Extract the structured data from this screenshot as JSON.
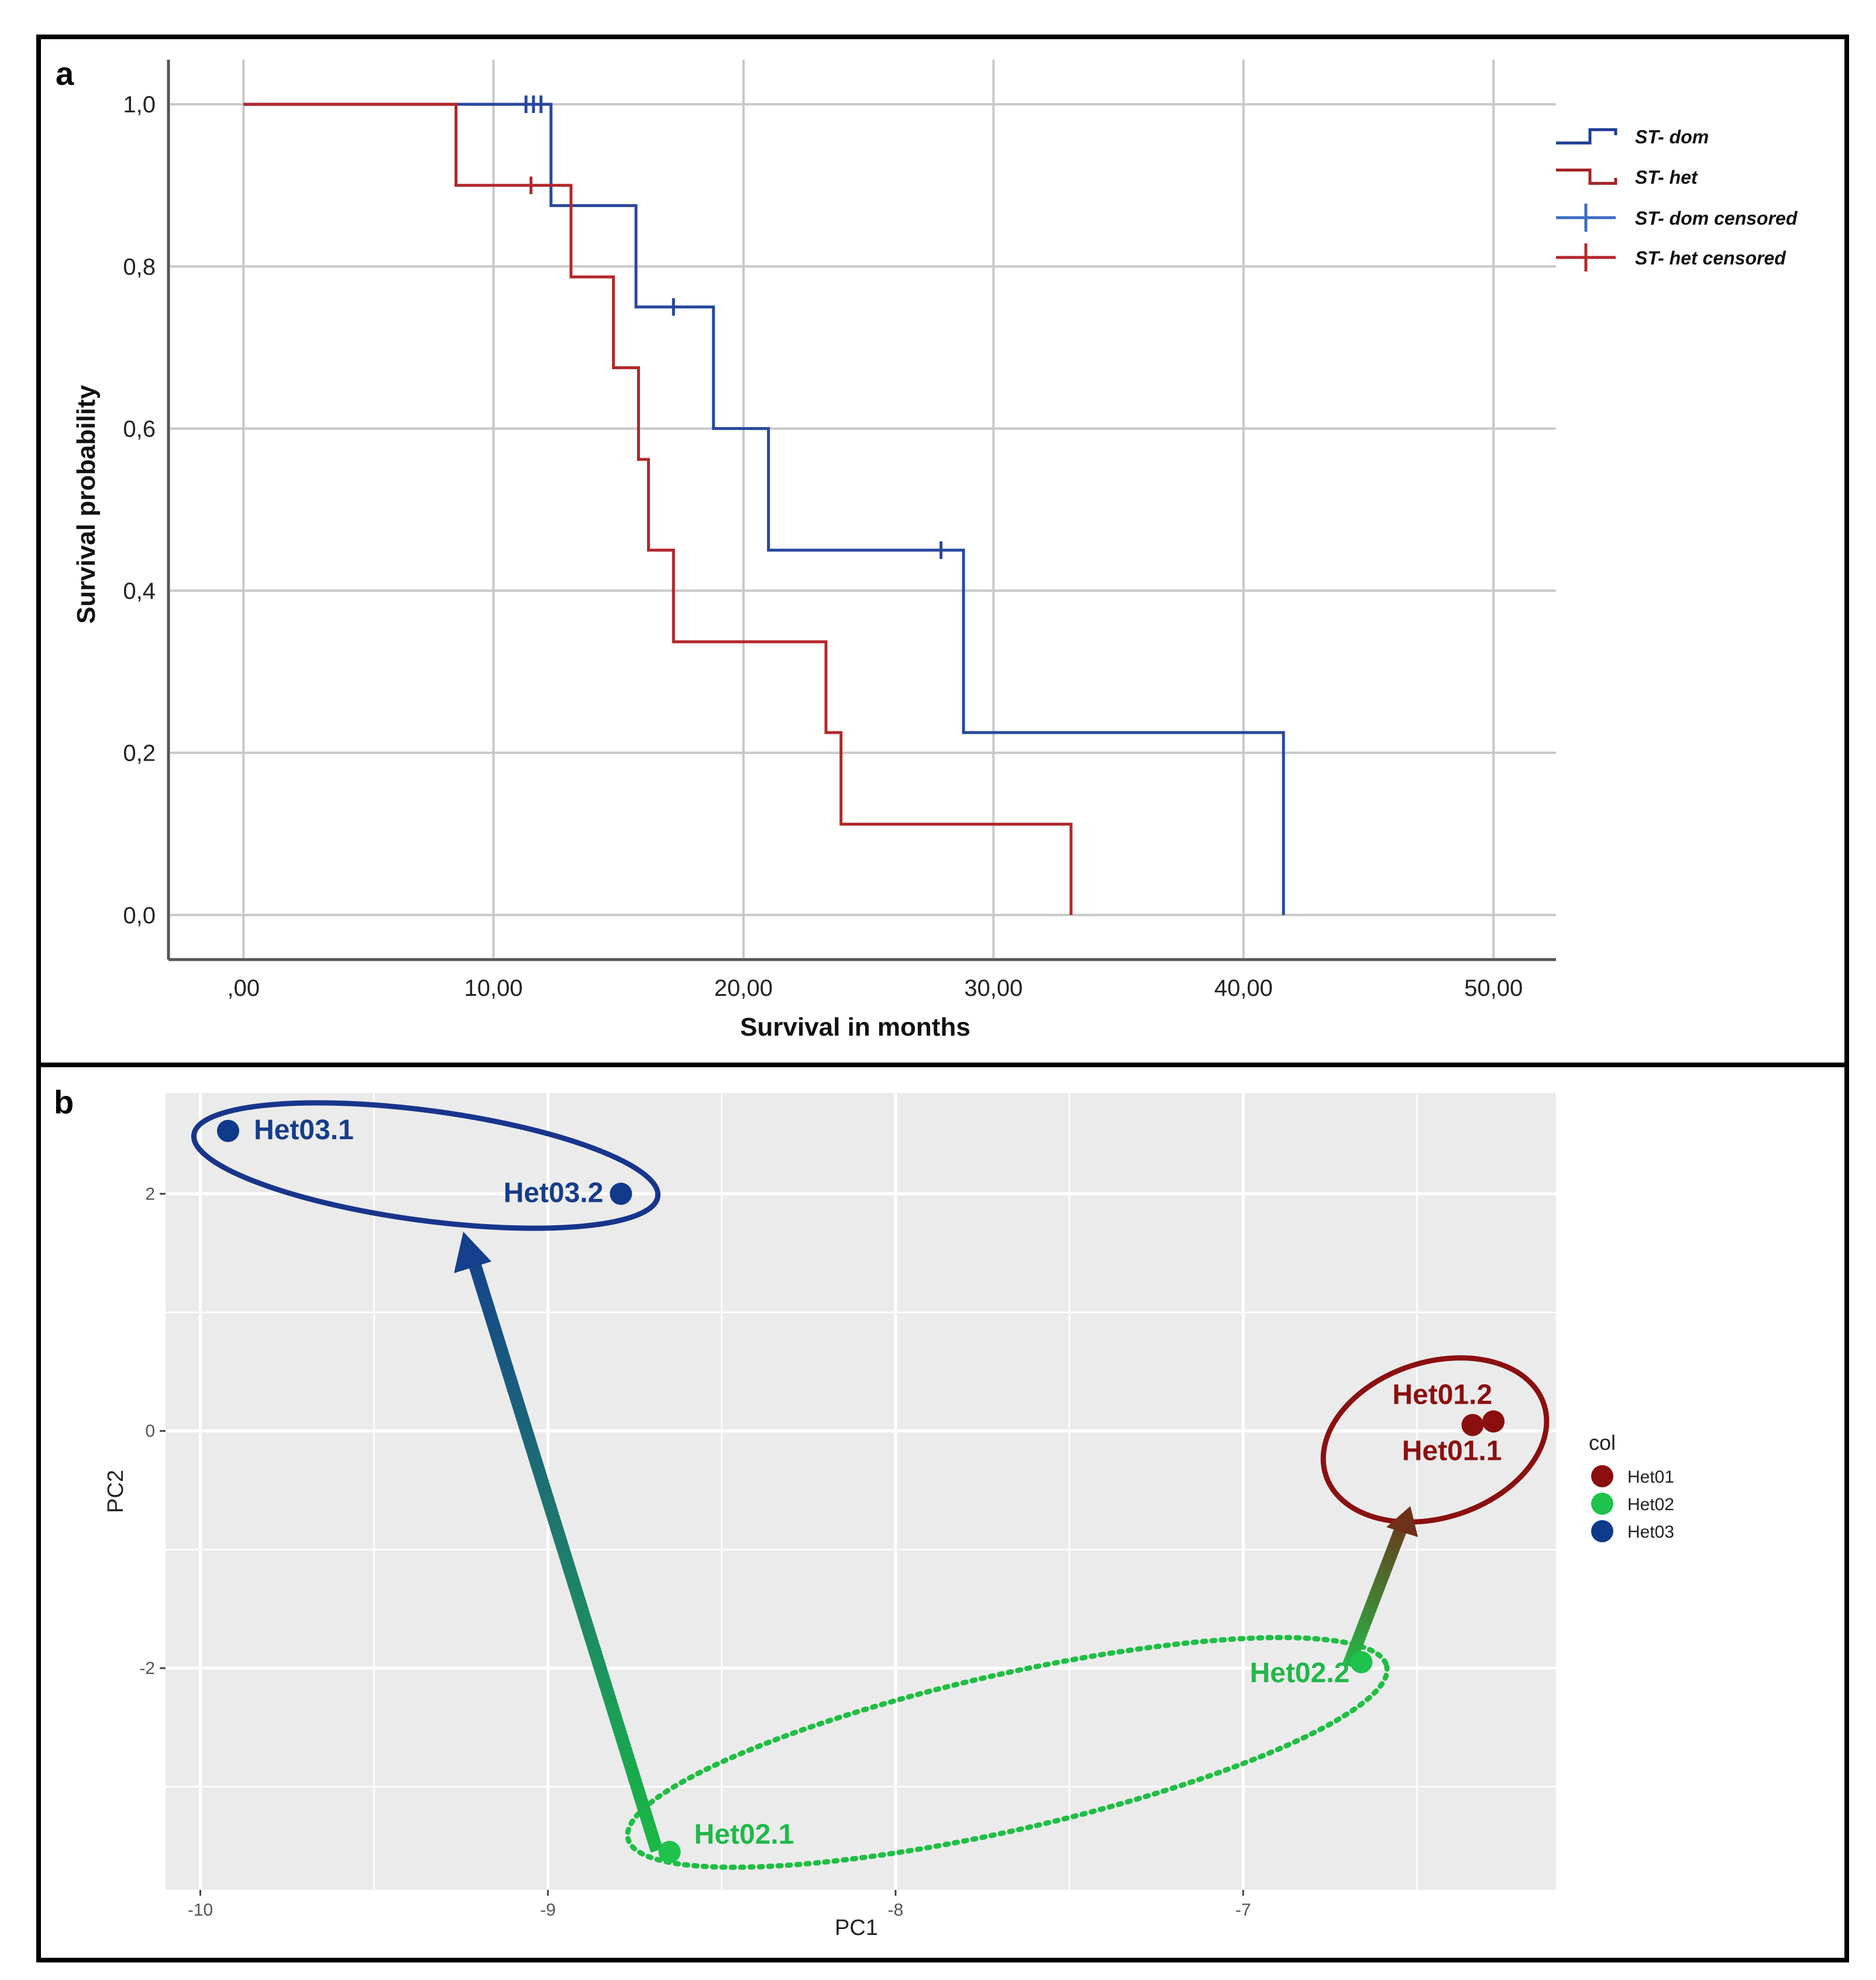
{
  "chart_data": [
    {
      "type": "line",
      "subtype": "kaplan-meier step",
      "panel_label": "a",
      "xlabel": "Survival in months",
      "ylabel": "Survival probability",
      "xlim": [
        -3,
        52.5
      ],
      "ylim": [
        -0.055,
        1.055
      ],
      "x_ticks": [
        0,
        10,
        20,
        30,
        40,
        50
      ],
      "x_tick_labels": [
        ",00",
        "10,00",
        "20,00",
        "30,00",
        "40,00",
        "50,00"
      ],
      "y_ticks": [
        0,
        0.2,
        0.4,
        0.6,
        0.8,
        1.0
      ],
      "y_tick_labels": [
        "0,0",
        "0,2",
        "0,4",
        "0,6",
        "0,8",
        "1,0"
      ],
      "grid": true,
      "legend_position": "top-right",
      "series": [
        {
          "name": "ST- dom",
          "color": "#27489c",
          "points": [
            [
              0,
              1.0
            ],
            [
              12.3,
              1.0
            ],
            [
              12.3,
              0.875
            ],
            [
              15.7,
              0.875
            ],
            [
              15.7,
              0.75
            ],
            [
              18.8,
              0.75
            ],
            [
              18.8,
              0.6
            ],
            [
              21.0,
              0.6
            ],
            [
              21.0,
              0.45
            ],
            [
              28.8,
              0.45
            ],
            [
              28.8,
              0.225
            ],
            [
              41.6,
              0.225
            ],
            [
              41.6,
              0.0
            ]
          ],
          "censored": [
            [
              11.3,
              1.0
            ],
            [
              11.6,
              1.0
            ],
            [
              11.9,
              1.0
            ],
            [
              17.2,
              0.75
            ],
            [
              27.9,
              0.45
            ]
          ]
        },
        {
          "name": "ST- het",
          "color": "#b2282b",
          "points": [
            [
              0,
              1.0
            ],
            [
              8.5,
              1.0
            ],
            [
              8.5,
              0.9
            ],
            [
              13.1,
              0.9
            ],
            [
              13.1,
              0.787
            ],
            [
              14.8,
              0.787
            ],
            [
              14.8,
              0.675
            ],
            [
              15.8,
              0.675
            ],
            [
              15.8,
              0.562
            ],
            [
              16.2,
              0.562
            ],
            [
              16.2,
              0.45
            ],
            [
              17.2,
              0.45
            ],
            [
              17.2,
              0.337
            ],
            [
              23.3,
              0.337
            ],
            [
              23.3,
              0.225
            ],
            [
              23.9,
              0.225
            ],
            [
              23.9,
              0.112
            ],
            [
              33.1,
              0.112
            ],
            [
              33.1,
              0.0
            ]
          ],
          "censored": [
            [
              11.5,
              0.9
            ]
          ]
        }
      ],
      "legend": [
        {
          "label": "ST- dom",
          "color": "#1f3f96",
          "symbol": "step"
        },
        {
          "label": "ST- het",
          "color": "#a32326",
          "symbol": "step"
        },
        {
          "label": "ST- dom censored",
          "color": "#3a6cc2",
          "symbol": "cross"
        },
        {
          "label": "ST- het censored",
          "color": "#b2282b",
          "symbol": "cross"
        }
      ]
    },
    {
      "type": "scatter",
      "panel_label": "b",
      "xlabel": "PC1",
      "ylabel": "PC2",
      "xlim": [
        -10.1,
        -6.1
      ],
      "ylim": [
        -3.87,
        2.85
      ],
      "x_ticks": [
        -10,
        -9,
        -8,
        -7
      ],
      "x_tick_labels": [
        "-10",
        "-9",
        "-8",
        "-7"
      ],
      "y_ticks": [
        2,
        0,
        -2
      ],
      "y_tick_labels": [
        "2",
        "0",
        "-2"
      ],
      "grid": true,
      "points": [
        {
          "label": "Het03.1",
          "group": "Het03",
          "x": -9.92,
          "y": 2.53
        },
        {
          "label": "Het03.2",
          "group": "Het03",
          "x": -8.79,
          "y": 2.0
        },
        {
          "label": "Het01.2",
          "group": "Het01",
          "x": -6.28,
          "y": 0.08
        },
        {
          "label": "Het01.1",
          "group": "Het01",
          "x": -6.34,
          "y": 0.05
        },
        {
          "label": "Het02.2",
          "group": "Het02",
          "x": -6.66,
          "y": -1.95
        },
        {
          "label": "Het02.1",
          "group": "Het02",
          "x": -8.65,
          "y": -3.55
        }
      ],
      "ellipses": [
        {
          "group": "Het03",
          "style": "solid"
        },
        {
          "group": "Het01",
          "style": "solid"
        },
        {
          "group": "Het02",
          "style": "dotted"
        }
      ],
      "arrows": [
        {
          "from": "Het02.1",
          "to": "Het03",
          "from_xy": [
            -8.67,
            -3.5
          ],
          "to_xy": [
            -9.23,
            1.68
          ]
        },
        {
          "from": "Het02.2",
          "to": "Het01",
          "from_xy": [
            -6.66,
            -1.95
          ],
          "to_xy": [
            -6.5,
            -0.65
          ]
        }
      ],
      "legend": {
        "title": "col",
        "position": "right",
        "items": [
          {
            "label": "Het01",
            "color": "#8b0f0e"
          },
          {
            "label": "Het02",
            "color": "#1fc24c"
          },
          {
            "label": "Het03",
            "color": "#0f3a8a"
          }
        ]
      },
      "label_colors": {
        "Het01": "#8b1010",
        "Het02": "#22b84a",
        "Het03": "#173d8a"
      }
    }
  ]
}
